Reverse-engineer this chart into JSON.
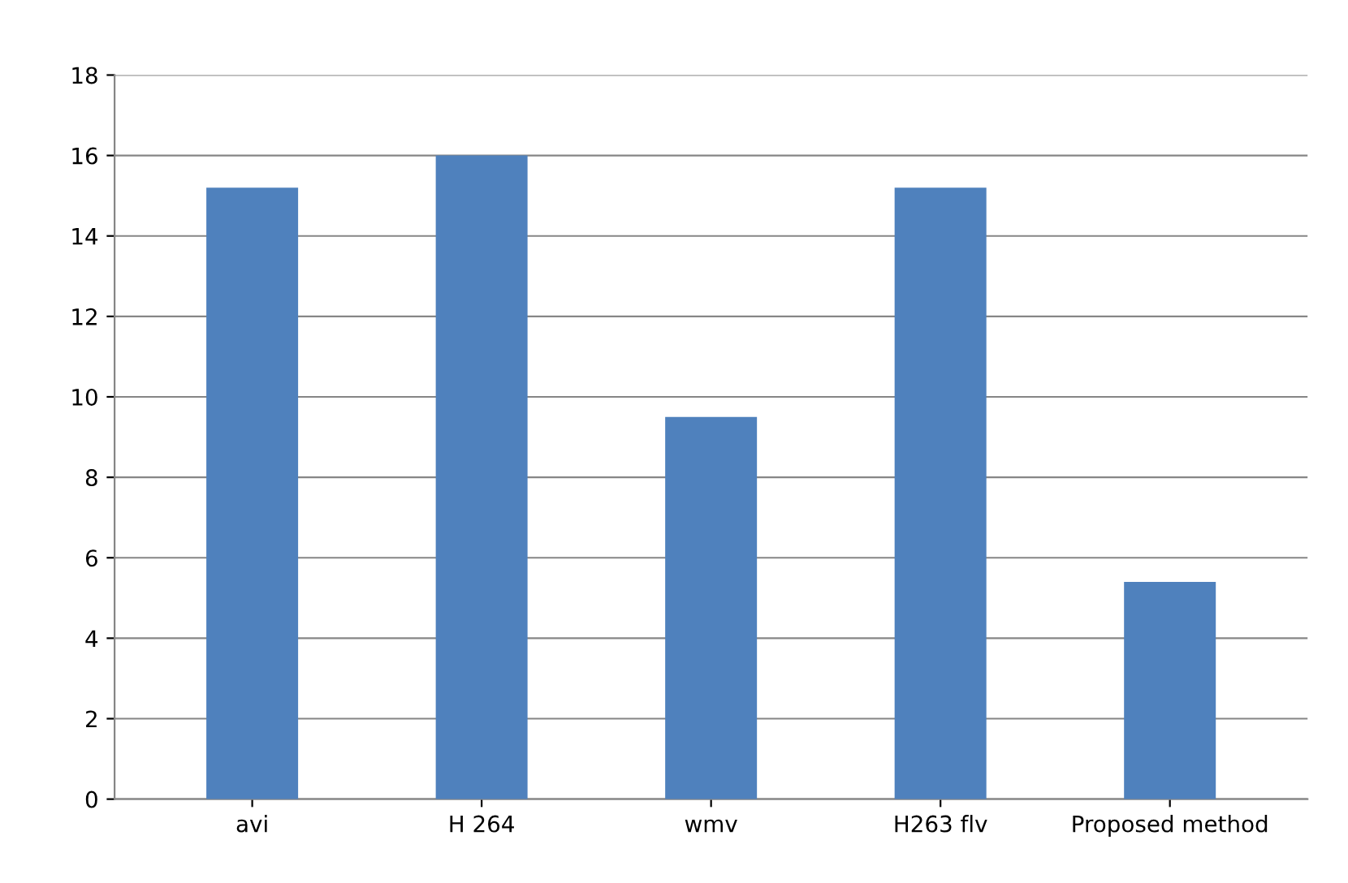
{
  "chart_data": {
    "type": "bar",
    "categories": [
      "avi",
      "H 264",
      "wmv",
      "H263 flv",
      "Proposed method"
    ],
    "values": [
      15.2,
      16,
      9.5,
      15.2,
      5.4
    ],
    "color": "#4f81bd",
    "ylim": [
      0,
      18
    ],
    "yticks": [
      0,
      2,
      4,
      6,
      8,
      10,
      12,
      14,
      16,
      18
    ],
    "grid": "y"
  }
}
